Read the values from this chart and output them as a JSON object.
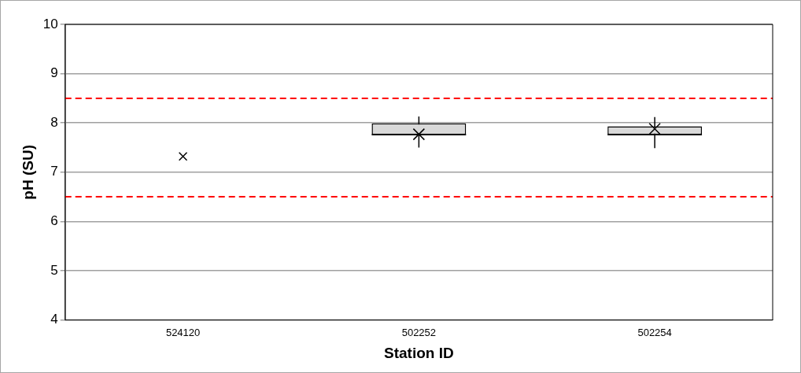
{
  "chart_data": {
    "type": "box",
    "xlabel": "Station ID",
    "ylabel": "pH (SU)",
    "categories": [
      "524120",
      "502252",
      "502254"
    ],
    "boxes": [
      null,
      {
        "low": 7.5,
        "q1": 7.76,
        "median": 7.76,
        "q3": 7.99,
        "high": 8.13,
        "mean": 7.77
      },
      {
        "low": 7.49,
        "q1": 7.76,
        "median": 7.76,
        "q3": 7.93,
        "high": 8.12,
        "mean": 7.88
      }
    ],
    "series": [
      {
        "type": "scatter",
        "x": [
          "524120",
          "502252",
          "502254"
        ],
        "values": [
          7.32,
          null,
          null
        ],
        "color": "#000000",
        "marker": "cross"
      }
    ],
    "color": "#d9d9d9",
    "ylim": [
      4,
      10
    ],
    "yticks": [
      4,
      5,
      6,
      7,
      8,
      9,
      10
    ],
    "grid": "y",
    "legend": false,
    "ref_lines": [
      {
        "axis": "y",
        "value": 8.5,
        "color": "#ff0000",
        "line_style": "dashed"
      },
      {
        "axis": "y",
        "value": 6.5,
        "color": "#ff0000",
        "line_style": "dashed"
      }
    ]
  }
}
